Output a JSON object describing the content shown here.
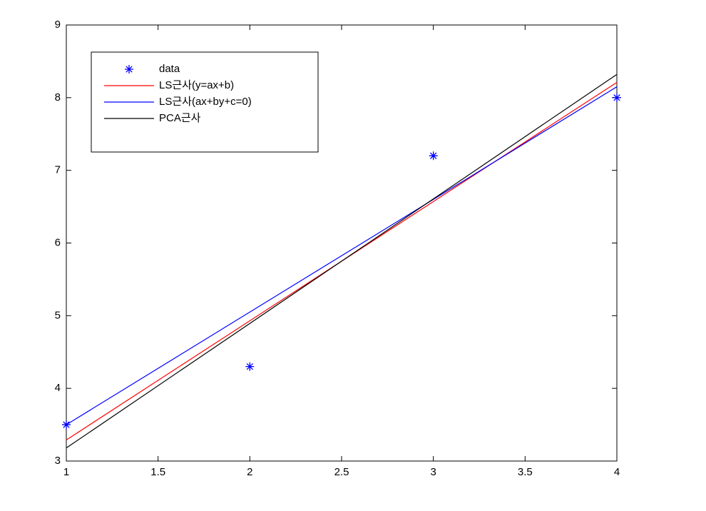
{
  "chart_data": {
    "type": "line",
    "xlim": [
      1,
      4
    ],
    "xticks": [
      1,
      1.5,
      2,
      2.5,
      3,
      3.5,
      4
    ],
    "ylim": [
      3,
      9
    ],
    "yticks": [
      3,
      4,
      5,
      6,
      7,
      8,
      9
    ],
    "legend": "upper left",
    "series": [
      {
        "name": "data",
        "color": "#0000ff",
        "mode": "markers",
        "x": [
          1,
          2,
          3,
          4
        ],
        "values": [
          3.5,
          4.3,
          7.2,
          8
        ]
      },
      {
        "name": "LS근사(y=ax+b)",
        "color": "#ff0000",
        "mode": "lines",
        "x": [
          1,
          4
        ],
        "values": [
          3.29,
          8.21
        ]
      },
      {
        "name": "LS근사(ax+by+c=0)",
        "color": "#0000ff",
        "mode": "lines",
        "x": [
          1,
          4
        ],
        "values": [
          3.5,
          8.15
        ]
      },
      {
        "name": "PCA근사",
        "color": "#000000",
        "mode": "lines",
        "x": [
          1,
          4
        ],
        "values": [
          3.18,
          8.32
        ]
      }
    ]
  }
}
